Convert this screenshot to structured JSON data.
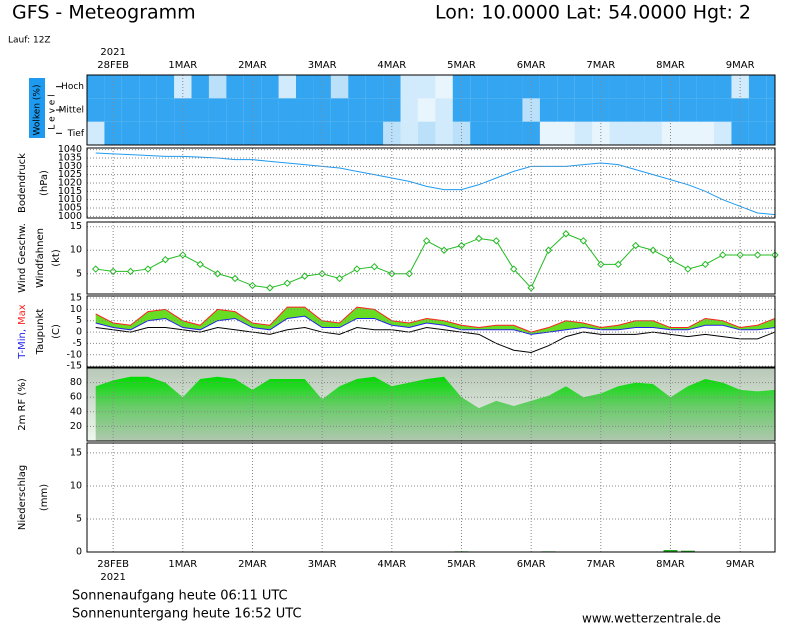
{
  "header": {
    "title": "GFS - Meteogramm",
    "location": "Lon: 10.0000 Lat: 54.0000 Hgt: 2",
    "run": "Lauf: 12Z"
  },
  "footer": {
    "sunrise": "Sonnenaufgang heute 06:11 UTC",
    "sunset": "Sonnenuntergang heute 16:52 UTC",
    "source": "www.wetterzentrale.de"
  },
  "chart_data": [
    {
      "type": "cloud",
      "ylabel": "Wolken (%)",
      "level_label": "L e v e l",
      "categories": [
        "Hoch",
        "Mittel",
        "Tief"
      ],
      "color": "#1e9bf0",
      "year_label": "2021",
      "xlim": [
        -0.375,
        9.5
      ],
      "xticks": [
        {
          "value": 0,
          "label": "28FEB"
        },
        {
          "value": 1,
          "label": "1MAR"
        },
        {
          "value": 2,
          "label": "2MAR"
        },
        {
          "value": 3,
          "label": "3MAR"
        },
        {
          "value": 4,
          "label": "4MAR"
        },
        {
          "value": 5,
          "label": "5MAR"
        },
        {
          "value": 6,
          "label": "6MAR"
        },
        {
          "value": 7,
          "label": "7MAR"
        },
        {
          "value": 8,
          "label": "8MAR"
        },
        {
          "value": 9,
          "label": "9MAR"
        }
      ],
      "x": [
        -0.25,
        0,
        0.25,
        0.5,
        0.75,
        1,
        1.25,
        1.5,
        1.75,
        2,
        2.25,
        2.5,
        2.75,
        3,
        3.25,
        3.5,
        3.75,
        4,
        4.25,
        4.5,
        4.75,
        5,
        5.25,
        5.5,
        5.75,
        6,
        6.25,
        6.5,
        6.75,
        7,
        7.25,
        7.5,
        7.75,
        8,
        8.25,
        8.5,
        8.75,
        9,
        9.25,
        9.5
      ],
      "series": [
        {
          "values": [
            90,
            90,
            90,
            90,
            90,
            20,
            90,
            30,
            90,
            90,
            90,
            20,
            90,
            90,
            30,
            90,
            90,
            90,
            20,
            20,
            10,
            90,
            90,
            90,
            90,
            90,
            90,
            90,
            90,
            90,
            90,
            90,
            90,
            90,
            90,
            90,
            90,
            20,
            90,
            90
          ]
        },
        {
          "values": [
            90,
            90,
            90,
            90,
            90,
            90,
            90,
            90,
            90,
            90,
            90,
            90,
            90,
            90,
            90,
            90,
            90,
            90,
            20,
            10,
            20,
            90,
            90,
            90,
            90,
            30,
            90,
            90,
            90,
            90,
            90,
            90,
            90,
            90,
            90,
            90,
            90,
            90,
            90,
            90
          ]
        },
        {
          "values": [
            20,
            90,
            90,
            90,
            90,
            90,
            90,
            90,
            90,
            90,
            90,
            90,
            90,
            90,
            90,
            90,
            90,
            30,
            20,
            30,
            20,
            30,
            90,
            90,
            90,
            90,
            10,
            10,
            20,
            10,
            20,
            20,
            20,
            10,
            10,
            10,
            20,
            90,
            90,
            90
          ]
        }
      ]
    },
    {
      "type": "line",
      "ylabel": "Bodendruck",
      "yunit": "(hPa)",
      "color": "#1e9bf0",
      "ylim": [
        999,
        1041
      ],
      "yticks": [
        1000,
        1005,
        1010,
        1015,
        1020,
        1025,
        1030,
        1035,
        1040
      ],
      "grid": true,
      "series": [
        {
          "values": [
            1038,
            1037.5,
            1037,
            1036.5,
            1036,
            1036,
            1035.5,
            1035,
            1034,
            1034,
            1033,
            1032,
            1031,
            1030,
            1029,
            1027,
            1025,
            1023,
            1021,
            1018,
            1016,
            1016,
            1019,
            1023,
            1027,
            1030,
            1030,
            1030,
            1031,
            1032,
            1031,
            1028,
            1025,
            1022,
            1019,
            1015,
            1010,
            1006,
            1002,
            1001
          ]
        }
      ]
    },
    {
      "type": "line",
      "ylabel": "Windfahnen",
      "yunit": "(kt)",
      "ylim": [
        0.7,
        16
      ],
      "yticks": [
        5,
        10,
        15
      ],
      "grid": true,
      "markers": true,
      "series": [
        {
          "name": "Wind Geschw.",
          "color": "#22bb22",
          "values": [
            6,
            5.5,
            5.5,
            6,
            8,
            9,
            7,
            5,
            4,
            2.5,
            2,
            3,
            4.5,
            5,
            4,
            6,
            6.5,
            5,
            5,
            12,
            10,
            11,
            12.5,
            12,
            6,
            2,
            10,
            13.5,
            12,
            7,
            7,
            11,
            10,
            8,
            6,
            7,
            9,
            9,
            9,
            9
          ]
        }
      ]
    },
    {
      "type": "line",
      "ylabel": "Taupunkt",
      "yunit": "(C)",
      "ylim": [
        -15.4,
        15.9
      ],
      "yticks": [
        15,
        10,
        5,
        0,
        -5,
        -10,
        -15
      ],
      "grid": true,
      "band_color": "#66dd22",
      "series": [
        {
          "name": "T-Min,",
          "color": "#2222ee",
          "values": [
            4,
            2,
            1,
            5,
            6,
            2,
            1,
            5,
            6,
            2,
            1,
            6,
            7,
            2,
            2,
            6,
            6,
            3,
            2,
            4,
            3,
            1,
            1,
            1,
            1,
            -1,
            0,
            1,
            2,
            1,
            1,
            2,
            2,
            1,
            1,
            3,
            3,
            1,
            1,
            2
          ]
        },
        {
          "name": "Max",
          "color": "#ff2020",
          "values": [
            8,
            4,
            3,
            9,
            10,
            5,
            3,
            10,
            9,
            4,
            3,
            11,
            11,
            5,
            4,
            11,
            10,
            5,
            4,
            6,
            5,
            3,
            2,
            3,
            3,
            0,
            2,
            5,
            4,
            2,
            3,
            5,
            5,
            2,
            2,
            6,
            5,
            2,
            3,
            6
          ]
        },
        {
          "name": "Taupunkt",
          "color": "#000000",
          "values": [
            2,
            1,
            0,
            2,
            2,
            1,
            0,
            2,
            1,
            0,
            -1,
            1,
            2,
            0,
            -1,
            2,
            1,
            1,
            0,
            2,
            1,
            0,
            -1,
            -5,
            -8,
            -9,
            -6,
            -2,
            0,
            -1,
            -1,
            -1,
            0,
            -1,
            -2,
            -1,
            -2,
            -3,
            -3,
            0
          ]
        }
      ]
    },
    {
      "type": "area",
      "ylabel": "2m RF (%)",
      "color": "#22cc22",
      "ylim": [
        0,
        100
      ],
      "yticks": [
        80,
        60,
        40,
        20
      ],
      "grid": true,
      "series": [
        {
          "values": [
            75,
            83,
            88,
            88,
            80,
            60,
            85,
            88,
            85,
            70,
            85,
            85,
            85,
            57,
            75,
            85,
            88,
            75,
            80,
            85,
            88,
            60,
            45,
            55,
            48,
            55,
            62,
            75,
            60,
            65,
            75,
            80,
            78,
            60,
            75,
            85,
            80,
            70,
            68,
            70
          ]
        }
      ]
    },
    {
      "type": "bar",
      "ylabel": "Niederschlag",
      "yunit": "(mm)",
      "color": "#22aa22",
      "ylim": [
        0,
        16.5
      ],
      "yticks": [
        0,
        5,
        10,
        15
      ],
      "grid": true,
      "series": [
        {
          "values": [
            0,
            0,
            0,
            0,
            0,
            0,
            0,
            0,
            0,
            0,
            0,
            0,
            0,
            0,
            0,
            0,
            0,
            0,
            0,
            0,
            0,
            0.1,
            0,
            0,
            0,
            0,
            0.1,
            0,
            0,
            0,
            0,
            0,
            0,
            0.3,
            0.2,
            0,
            0,
            0,
            0,
            0
          ]
        }
      ]
    }
  ]
}
